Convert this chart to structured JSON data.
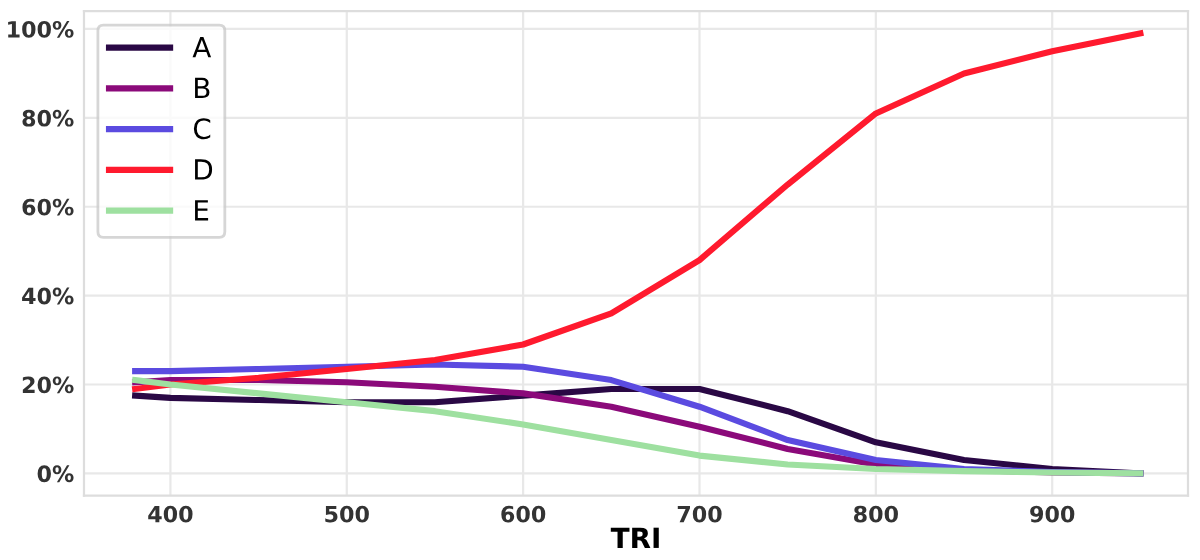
{
  "chart_data": {
    "type": "line",
    "xlabel": "TRI",
    "x": [
      380,
      400,
      450,
      500,
      550,
      600,
      650,
      700,
      750,
      800,
      850,
      900,
      950
    ],
    "series": [
      {
        "name": "A",
        "color": "#2a0845",
        "values": [
          17.5,
          17,
          16.5,
          16,
          16,
          17.5,
          19,
          19,
          14,
          7,
          3,
          1,
          0
        ]
      },
      {
        "name": "B",
        "color": "#8b0a7a",
        "values": [
          20.5,
          21,
          21,
          20.5,
          19.5,
          18,
          15,
          10.5,
          5.5,
          2,
          0.8,
          0.2,
          0
        ]
      },
      {
        "name": "C",
        "color": "#5b4be0",
        "values": [
          23,
          23,
          23.5,
          24,
          24.5,
          24,
          21,
          15,
          7.5,
          3,
          1,
          0.3,
          0
        ]
      },
      {
        "name": "D",
        "color": "#ff1a2e",
        "values": [
          19,
          20,
          21.5,
          23.5,
          25.5,
          29,
          36,
          48,
          65,
          81,
          90,
          95,
          99
        ]
      },
      {
        "name": "E",
        "color": "#9ee0a0",
        "values": [
          21,
          20,
          18,
          16,
          14,
          11,
          7.5,
          4,
          2,
          1,
          0.5,
          0.2,
          0
        ]
      }
    ],
    "xlim": [
      351,
      977
    ],
    "xticks": [
      400,
      500,
      600,
      700,
      800,
      900
    ],
    "ylim": [
      -5,
      104
    ],
    "yticks": [
      {
        "value": 0,
        "label": "0%"
      },
      {
        "value": 20,
        "label": "20%"
      },
      {
        "value": 40,
        "label": "40%"
      },
      {
        "value": 60,
        "label": "60%"
      },
      {
        "value": 80,
        "label": "80%"
      },
      {
        "value": 100,
        "label": "100%"
      }
    ],
    "grid": true,
    "legend": "top left",
    "marker": "none",
    "line_style": "solid"
  }
}
